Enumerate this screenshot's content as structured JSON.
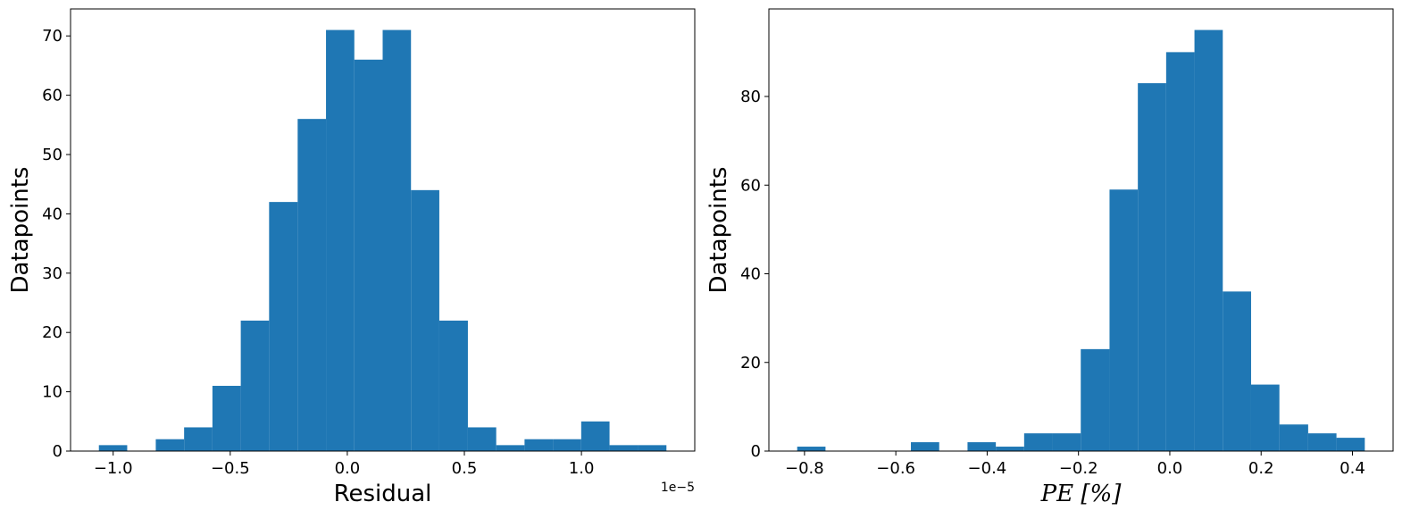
{
  "chart_data": [
    {
      "type": "histogram",
      "xlabel": "Residual",
      "ylabel": "Datapoints",
      "x_offset_label": "1e−5",
      "color": "#1f77b4",
      "bins": [
        -1.061,
        -0.94,
        -0.818,
        -0.697,
        -0.576,
        -0.455,
        -0.334,
        -0.212,
        -0.091,
        0.03,
        0.151,
        0.272,
        0.393,
        0.515,
        0.636,
        0.757,
        0.878,
        0.999,
        1.12,
        1.242,
        1.363
      ],
      "values": [
        1,
        0,
        2,
        4,
        11,
        22,
        42,
        56,
        71,
        66,
        71,
        44,
        22,
        4,
        1,
        2,
        2,
        5,
        1,
        1
      ],
      "xlim": [
        -1.182,
        1.484
      ],
      "ylim": [
        0,
        74.55
      ],
      "xticks": [
        {
          "value": -1.0,
          "label": "−1.0"
        },
        {
          "value": -0.5,
          "label": "−0.5"
        },
        {
          "value": 0,
          "label": "0.0"
        },
        {
          "value": 0.5,
          "label": "0.5"
        },
        {
          "value": 1.0,
          "label": "1.0"
        }
      ],
      "yticks": [
        0,
        10,
        20,
        30,
        40,
        50,
        60,
        70
      ]
    },
    {
      "type": "histogram",
      "xlabel": "PE [%]",
      "ylabel": "Datapoints",
      "color": "#1f77b4",
      "bins": [
        -0.816,
        -0.754,
        -0.692,
        -0.629,
        -0.567,
        -0.505,
        -0.443,
        -0.381,
        -0.319,
        -0.257,
        -0.195,
        -0.132,
        -0.07,
        -0.008,
        0.054,
        0.116,
        0.178,
        0.24,
        0.303,
        0.365,
        0.427
      ],
      "values": [
        1,
        0,
        0,
        0,
        2,
        0,
        2,
        1,
        4,
        4,
        23,
        59,
        83,
        90,
        95,
        36,
        15,
        6,
        4,
        3
      ],
      "xlim": [
        -0.878,
        0.489
      ],
      "ylim": [
        0,
        99.75
      ],
      "xticks": [
        {
          "value": -0.8,
          "label": "−0.8"
        },
        {
          "value": -0.6,
          "label": "−0.6"
        },
        {
          "value": -0.4,
          "label": "−0.4"
        },
        {
          "value": -0.2,
          "label": "−0.2"
        },
        {
          "value": 0,
          "label": "0.0"
        },
        {
          "value": 0.2,
          "label": "0.2"
        },
        {
          "value": 0.4,
          "label": "0.4"
        }
      ],
      "yticks": [
        0,
        20,
        40,
        60,
        80
      ]
    }
  ]
}
